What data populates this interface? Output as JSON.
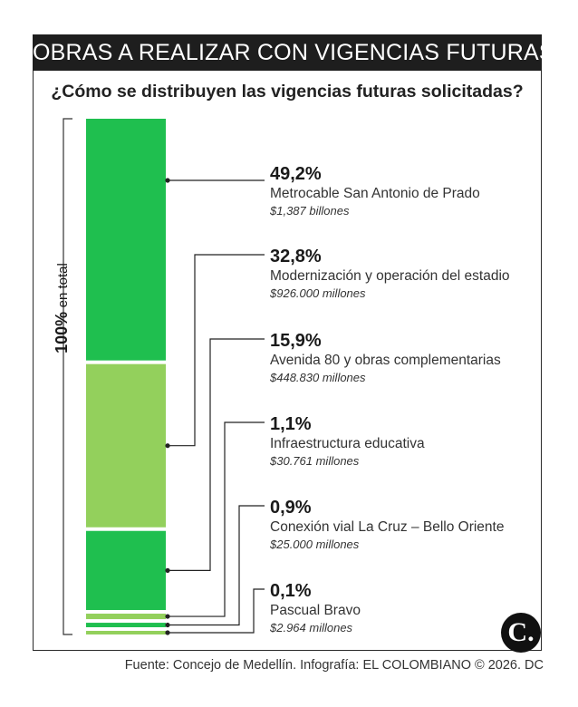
{
  "header": {
    "title": "OBRAS A REALIZAR CON VIGENCIAS FUTURAS",
    "subtitle": "¿Cómo se distribuyen las vigencias futuras solicitadas?"
  },
  "total_label": {
    "value": "100%",
    "text": "en total"
  },
  "footer": {
    "source": "Fuente: Concejo de Medellín. Infografía: EL COLOMBIANO © 2026. DC"
  },
  "logo": {
    "letter": "C."
  },
  "colors": {
    "dark_green": "#1fbf4f",
    "light_green": "#93d05c",
    "title_bg": "#1e1e1e"
  },
  "chart_data": {
    "type": "bar",
    "orientation": "stacked-vertical",
    "title": "¿Cómo se distribuyen las vigencias futuras solicitadas?",
    "series": [
      {
        "name": "Metrocable San Antonio de Prado",
        "value": 49.2,
        "pct_label": "49,2%",
        "amount": "$1,387 billones",
        "color": "#1fbf4f"
      },
      {
        "name": "Modernización y operación del estadio",
        "value": 32.8,
        "pct_label": "32,8%",
        "amount": "$926.000 millones",
        "color": "#93d05c"
      },
      {
        "name": "Avenida 80 y obras complementarias",
        "value": 15.9,
        "pct_label": "15,9%",
        "amount": "$448.830 millones",
        "color": "#1fbf4f"
      },
      {
        "name": "Infraestructura educativa",
        "value": 1.1,
        "pct_label": "1,1%",
        "amount": "$30.761 millones",
        "color": "#93d05c"
      },
      {
        "name": "Conexión vial La Cruz – Bello Oriente",
        "value": 0.9,
        "pct_label": "0,9%",
        "amount": "$25.000 millones",
        "color": "#1fbf4f"
      },
      {
        "name": "Pascual Bravo",
        "value": 0.1,
        "pct_label": "0,1%",
        "amount": "$2.964 millones",
        "color": "#93d05c"
      }
    ]
  }
}
